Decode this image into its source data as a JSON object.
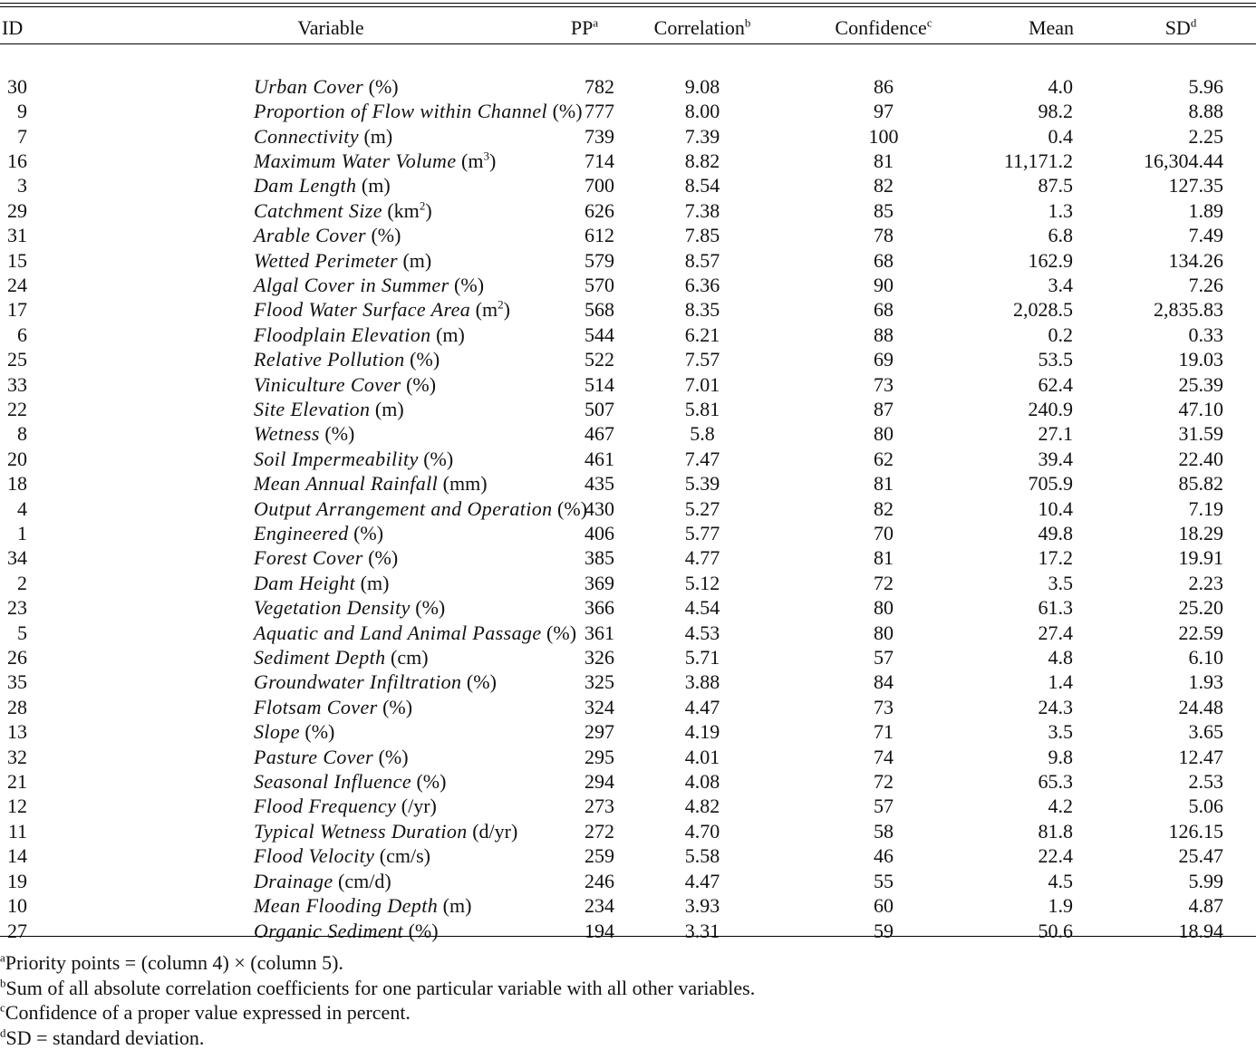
{
  "table": {
    "headers": {
      "id": "ID",
      "variable": "Variable",
      "pp": "PP",
      "pp_sup": "a",
      "correlation": "Correlation",
      "correlation_sup": "b",
      "confidence": "Confidence",
      "confidence_sup": "c",
      "mean": "Mean",
      "sd": "SD",
      "sd_sup": "d"
    },
    "rows": [
      {
        "id": "30",
        "name": "Urban Cover",
        "unit": "(%)",
        "unit_sup": "",
        "unit_close": "",
        "pp": "782",
        "corr": "9.08",
        "conf": "86",
        "mean": "4.0",
        "sd": "5.96"
      },
      {
        "id": "9",
        "name": "Proportion of Flow within Channel",
        "unit": "(%)",
        "unit_sup": "",
        "unit_close": "",
        "pp": "777",
        "corr": "8.00",
        "conf": "97",
        "mean": "98.2",
        "sd": "8.88"
      },
      {
        "id": "7",
        "name": "Connectivity",
        "unit": "(m)",
        "unit_sup": "",
        "unit_close": "",
        "pp": "739",
        "corr": "7.39",
        "conf": "100",
        "mean": "0.4",
        "sd": "2.25"
      },
      {
        "id": "16",
        "name": "Maximum Water Volume",
        "unit": "(m",
        "unit_sup": "3",
        "unit_close": ")",
        "pp": "714",
        "corr": "8.82",
        "conf": "81",
        "mean": "11,171.2",
        "sd": "16,304.44"
      },
      {
        "id": "3",
        "name": "Dam Length",
        "unit": "(m)",
        "unit_sup": "",
        "unit_close": "",
        "pp": "700",
        "corr": "8.54",
        "conf": "82",
        "mean": "87.5",
        "sd": "127.35"
      },
      {
        "id": "29",
        "name": "Catchment Size",
        "unit": "(km",
        "unit_sup": "2",
        "unit_close": ")",
        "pp": "626",
        "corr": "7.38",
        "conf": "85",
        "mean": "1.3",
        "sd": "1.89"
      },
      {
        "id": "31",
        "name": "Arable Cover",
        "unit": "(%)",
        "unit_sup": "",
        "unit_close": "",
        "pp": "612",
        "corr": "7.85",
        "conf": "78",
        "mean": "6.8",
        "sd": "7.49"
      },
      {
        "id": "15",
        "name": "Wetted Perimeter",
        "unit": "(m)",
        "unit_sup": "",
        "unit_close": "",
        "pp": "579",
        "corr": "8.57",
        "conf": "68",
        "mean": "162.9",
        "sd": "134.26"
      },
      {
        "id": "24",
        "name": "Algal Cover in Summer",
        "unit": "(%)",
        "unit_sup": "",
        "unit_close": "",
        "pp": "570",
        "corr": "6.36",
        "conf": "90",
        "mean": "3.4",
        "sd": "7.26"
      },
      {
        "id": "17",
        "name": "Flood Water Surface Area",
        "unit": "(m",
        "unit_sup": "2",
        "unit_close": ")",
        "pp": "568",
        "corr": "8.35",
        "conf": "68",
        "mean": "2,028.5",
        "sd": "2,835.83"
      },
      {
        "id": "6",
        "name": "Floodplain Elevation",
        "unit": "(m)",
        "unit_sup": "",
        "unit_close": "",
        "pp": "544",
        "corr": "6.21",
        "conf": "88",
        "mean": "0.2",
        "sd": "0.33"
      },
      {
        "id": "25",
        "name": "Relative Pollution",
        "unit": "(%)",
        "unit_sup": "",
        "unit_close": "",
        "pp": "522",
        "corr": "7.57",
        "conf": "69",
        "mean": "53.5",
        "sd": "19.03"
      },
      {
        "id": "33",
        "name": "Viniculture Cover",
        "unit": "(%)",
        "unit_sup": "",
        "unit_close": "",
        "pp": "514",
        "corr": "7.01",
        "conf": "73",
        "mean": "62.4",
        "sd": "25.39"
      },
      {
        "id": "22",
        "name": "Site Elevation",
        "unit": "(m)",
        "unit_sup": "",
        "unit_close": "",
        "pp": "507",
        "corr": "5.81",
        "conf": "87",
        "mean": "240.9",
        "sd": "47.10"
      },
      {
        "id": "8",
        "name": "Wetness",
        "unit": "(%)",
        "unit_sup": "",
        "unit_close": "",
        "pp": "467",
        "corr": "5.8",
        "conf": "80",
        "mean": "27.1",
        "sd": "31.59"
      },
      {
        "id": "20",
        "name": "Soil Impermeability",
        "unit": "(%)",
        "unit_sup": "",
        "unit_close": "",
        "pp": "461",
        "corr": "7.47",
        "conf": "62",
        "mean": "39.4",
        "sd": "22.40"
      },
      {
        "id": "18",
        "name": "Mean Annual Rainfall",
        "unit": "(mm)",
        "unit_sup": "",
        "unit_close": "",
        "pp": "435",
        "corr": "5.39",
        "conf": "81",
        "mean": "705.9",
        "sd": "85.82"
      },
      {
        "id": "4",
        "name": "Output Arrangement and Operation",
        "unit": "(%)",
        "unit_sup": "",
        "unit_close": "",
        "pp": "430",
        "corr": "5.27",
        "conf": "82",
        "mean": "10.4",
        "sd": "7.19"
      },
      {
        "id": "1",
        "name": "Engineered",
        "unit": "(%)",
        "unit_sup": "",
        "unit_close": "",
        "pp": "406",
        "corr": "5.77",
        "conf": "70",
        "mean": "49.8",
        "sd": "18.29"
      },
      {
        "id": "34",
        "name": "Forest Cover",
        "unit": "(%)",
        "unit_sup": "",
        "unit_close": "",
        "pp": "385",
        "corr": "4.77",
        "conf": "81",
        "mean": "17.2",
        "sd": "19.91"
      },
      {
        "id": "2",
        "name": "Dam Height",
        "unit": "(m)",
        "unit_sup": "",
        "unit_close": "",
        "pp": "369",
        "corr": "5.12",
        "conf": "72",
        "mean": "3.5",
        "sd": "2.23"
      },
      {
        "id": "23",
        "name": "Vegetation Density",
        "unit": "(%)",
        "unit_sup": "",
        "unit_close": "",
        "pp": "366",
        "corr": "4.54",
        "conf": "80",
        "mean": "61.3",
        "sd": "25.20"
      },
      {
        "id": "5",
        "name": "Aquatic and Land Animal Passage",
        "unit": "(%)",
        "unit_sup": "",
        "unit_close": "",
        "pp": "361",
        "corr": "4.53",
        "conf": "80",
        "mean": "27.4",
        "sd": "22.59"
      },
      {
        "id": "26",
        "name": "Sediment Depth",
        "unit": "(cm)",
        "unit_sup": "",
        "unit_close": "",
        "pp": "326",
        "corr": "5.71",
        "conf": "57",
        "mean": "4.8",
        "sd": "6.10"
      },
      {
        "id": "35",
        "name": "Groundwater Infiltration",
        "unit": "(%)",
        "unit_sup": "",
        "unit_close": "",
        "pp": "325",
        "corr": "3.88",
        "conf": "84",
        "mean": "1.4",
        "sd": "1.93"
      },
      {
        "id": "28",
        "name": "Flotsam Cover",
        "unit": "(%)",
        "unit_sup": "",
        "unit_close": "",
        "pp": "324",
        "corr": "4.47",
        "conf": "73",
        "mean": "24.3",
        "sd": "24.48"
      },
      {
        "id": "13",
        "name": "Slope",
        "unit": "(%)",
        "unit_sup": "",
        "unit_close": "",
        "pp": "297",
        "corr": "4.19",
        "conf": "71",
        "mean": "3.5",
        "sd": "3.65"
      },
      {
        "id": "32",
        "name": "Pasture Cover",
        "unit": "(%)",
        "unit_sup": "",
        "unit_close": "",
        "pp": "295",
        "corr": "4.01",
        "conf": "74",
        "mean": "9.8",
        "sd": "12.47"
      },
      {
        "id": "21",
        "name": "Seasonal Influence",
        "unit": "(%)",
        "unit_sup": "",
        "unit_close": "",
        "pp": "294",
        "corr": "4.08",
        "conf": "72",
        "mean": "65.3",
        "sd": "2.53"
      },
      {
        "id": "12",
        "name": "Flood Frequency",
        "unit": "(/yr)",
        "unit_sup": "",
        "unit_close": "",
        "pp": "273",
        "corr": "4.82",
        "conf": "57",
        "mean": "4.2",
        "sd": "5.06"
      },
      {
        "id": "11",
        "name": "Typical Wetness Duration",
        "unit": "(d/yr)",
        "unit_sup": "",
        "unit_close": "",
        "pp": "272",
        "corr": "4.70",
        "conf": "58",
        "mean": "81.8",
        "sd": "126.15"
      },
      {
        "id": "14",
        "name": "Flood Velocity",
        "unit": "(cm/s)",
        "unit_sup": "",
        "unit_close": "",
        "pp": "259",
        "corr": "5.58",
        "conf": "46",
        "mean": "22.4",
        "sd": "25.47"
      },
      {
        "id": "19",
        "name": "Drainage",
        "unit": "(cm/d)",
        "unit_sup": "",
        "unit_close": "",
        "pp": "246",
        "corr": "4.47",
        "conf": "55",
        "mean": "4.5",
        "sd": "5.99"
      },
      {
        "id": "10",
        "name": "Mean Flooding Depth",
        "unit": "(m)",
        "unit_sup": "",
        "unit_close": "",
        "pp": "234",
        "corr": "3.93",
        "conf": "60",
        "mean": "1.9",
        "sd": "4.87"
      },
      {
        "id": "27",
        "name": "Organic Sediment",
        "unit": "(%)",
        "unit_sup": "",
        "unit_close": "",
        "pp": "194",
        "corr": "3.31",
        "conf": "59",
        "mean": "50.6",
        "sd": "18.94"
      }
    ]
  },
  "footnotes": [
    {
      "mark": "a",
      "text": "Priority points = (column 4) × (column 5)."
    },
    {
      "mark": "b",
      "text": "Sum of all absolute correlation coefficients for one particular variable with all other variables."
    },
    {
      "mark": "c",
      "text": "Confidence of a proper value expressed in percent."
    },
    {
      "mark": "d",
      "text": "SD = standard deviation."
    }
  ]
}
